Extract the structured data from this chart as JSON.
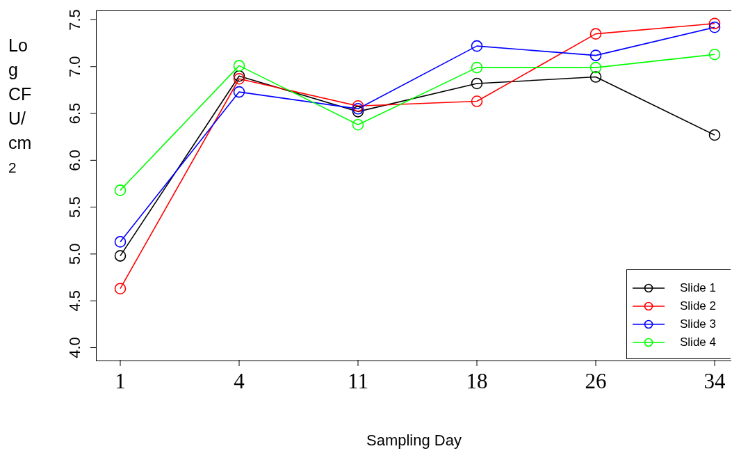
{
  "chart_data": {
    "type": "line",
    "xlabel": "Sampling Day",
    "ylabel": "Log CFU/cm$^{2}$",
    "categories": [
      "1",
      "4",
      "11",
      "18",
      "26",
      "34"
    ],
    "series": [
      {
        "name": "Slide 1",
        "color": "#000000",
        "values": [
          4.98,
          6.9,
          6.52,
          6.82,
          6.89,
          6.27
        ]
      },
      {
        "name": "Slide 2",
        "color": "#ff0000",
        "values": [
          4.63,
          6.87,
          6.58,
          6.63,
          7.35,
          7.46
        ]
      },
      {
        "name": "Slide 3",
        "color": "#0000ff",
        "values": [
          5.13,
          6.73,
          6.55,
          7.22,
          7.12,
          7.42
        ]
      },
      {
        "name": "Slide 4",
        "color": "#00ff00",
        "values": [
          5.68,
          7.01,
          6.38,
          6.99,
          6.99,
          7.13
        ]
      }
    ],
    "ylim": [
      3.87,
      7.6
    ],
    "yticks": [
      {
        "value": 4,
        "label": "4.0"
      },
      4.5,
      {
        "value": 5,
        "label": "5.0"
      },
      5.5,
      {
        "value": 6,
        "label": "6.0"
      },
      6.5,
      {
        "value": 7,
        "label": "7.0"
      },
      7.5
    ],
    "marker": "circle",
    "line_style": "solid",
    "legend": "bottom right",
    "grid": false
  }
}
